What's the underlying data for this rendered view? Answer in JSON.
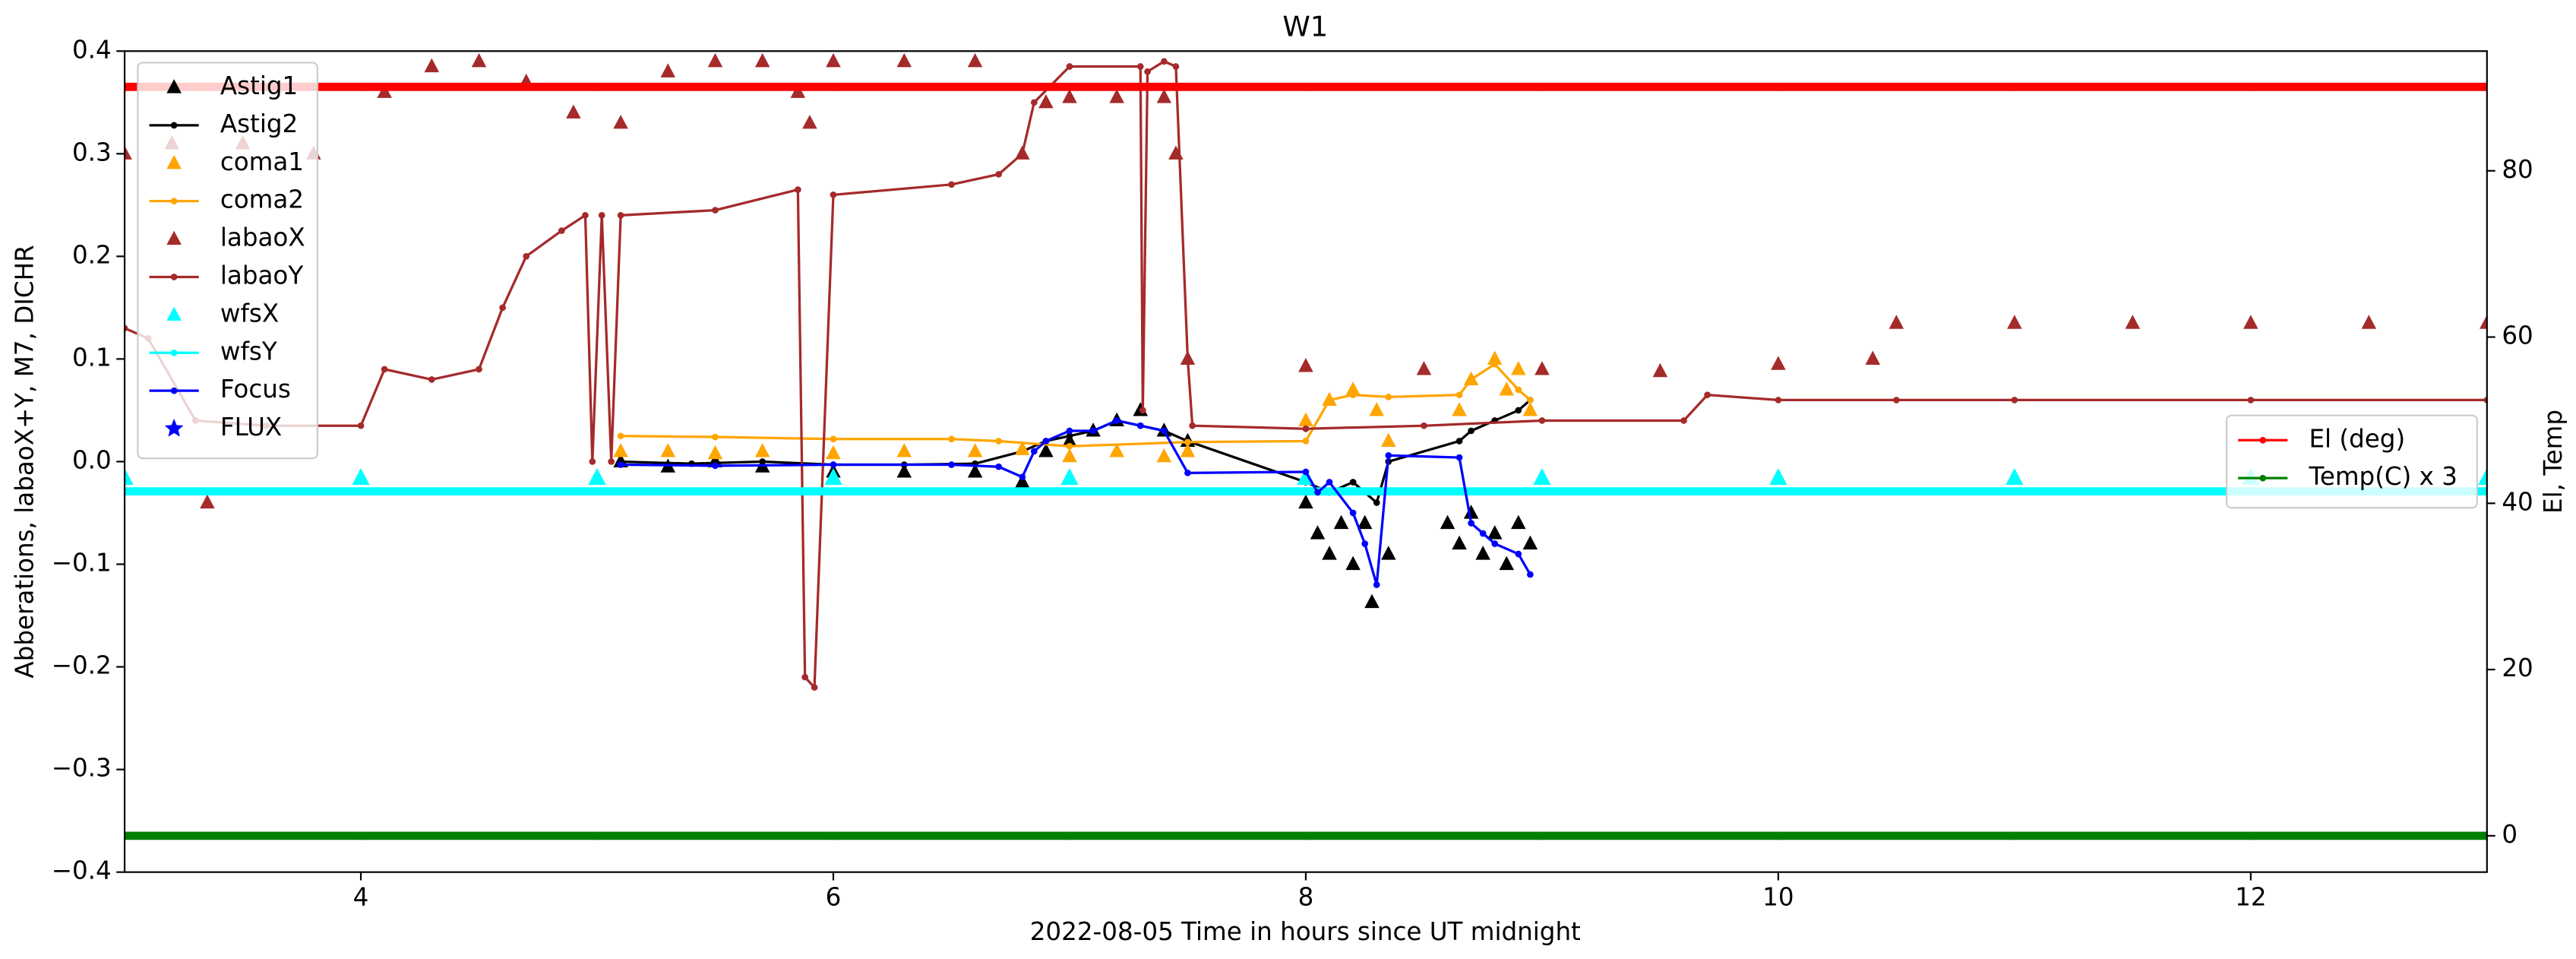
{
  "chart_data": {
    "type": "line",
    "title": "W1",
    "xlabel": "2022-08-05  Time in hours since UT midnight",
    "ylabel": "Abberations, labaoX+Y, M7, DICHR",
    "y2label": "El, Temp",
    "xlim": [
      3,
      13
    ],
    "xticks": [
      4,
      6,
      8,
      10,
      12
    ],
    "ylim": [
      -0.4,
      0.4
    ],
    "yticks": [
      {
        "value": -0.4,
        "label": "−0.4"
      },
      {
        "value": -0.3,
        "label": "−0.3"
      },
      {
        "value": -0.2,
        "label": "−0.2"
      },
      {
        "value": -0.1,
        "label": "−0.1"
      },
      {
        "value": 0,
        "label": "0.0"
      },
      0.1,
      0.2,
      0.3,
      0.4
    ],
    "y2lim": [
      -4.37,
      94.4
    ],
    "y2ticks": [
      0,
      20,
      40,
      60,
      80
    ],
    "legend": "upper left",
    "legend2": "center right",
    "series": [
      {
        "name": "Astig1",
        "color": "#000000",
        "marker": "^",
        "line": false,
        "x": [
          5.1,
          5.3,
          5.5,
          5.7,
          6.0,
          6.3,
          6.6,
          6.8,
          6.9,
          7.0,
          7.1,
          7.2,
          7.3,
          7.4,
          7.5,
          8.0,
          8.05,
          8.1,
          8.15,
          8.2,
          8.25,
          8.28,
          8.35,
          8.6,
          8.65,
          8.7,
          8.75,
          8.8,
          8.85,
          8.9,
          8.95
        ],
        "values": [
          0.0,
          -0.005,
          0.0,
          -0.005,
          -0.01,
          -0.01,
          -0.01,
          -0.02,
          0.01,
          0.02,
          0.03,
          0.04,
          0.05,
          0.03,
          0.02,
          -0.04,
          -0.07,
          -0.09,
          -0.06,
          -0.1,
          -0.06,
          -0.137,
          -0.09,
          -0.06,
          -0.08,
          -0.05,
          -0.09,
          -0.07,
          -0.1,
          -0.06,
          -0.08
        ]
      },
      {
        "name": "Astig2",
        "color": "#000000",
        "marker": "o",
        "line": true,
        "x": [
          5.1,
          5.4,
          5.7,
          6.0,
          6.3,
          6.6,
          6.8,
          6.9,
          7.0,
          7.1,
          7.2,
          7.3,
          7.4,
          7.5,
          8.0,
          8.1,
          8.2,
          8.3,
          8.35,
          8.65,
          8.7,
          8.8,
          8.9,
          8.95
        ],
        "values": [
          0.0,
          -0.002,
          0.0,
          -0.003,
          -0.003,
          -0.002,
          0.01,
          0.02,
          0.025,
          0.03,
          0.04,
          0.035,
          0.03,
          0.02,
          -0.02,
          -0.03,
          -0.02,
          -0.04,
          0.0,
          0.02,
          0.03,
          0.04,
          0.05,
          0.06
        ]
      },
      {
        "name": "coma1",
        "color": "#ffa500",
        "marker": "^",
        "line": false,
        "x": [
          5.1,
          5.3,
          5.5,
          5.7,
          6.0,
          6.3,
          6.6,
          6.8,
          7.0,
          7.2,
          7.4,
          7.5,
          8.0,
          8.1,
          8.2,
          8.3,
          8.35,
          8.65,
          8.7,
          8.8,
          8.85,
          8.9,
          8.95
        ],
        "values": [
          0.01,
          0.01,
          0.008,
          0.01,
          0.008,
          0.01,
          0.01,
          0.012,
          0.005,
          0.01,
          0.005,
          0.01,
          0.04,
          0.06,
          0.07,
          0.05,
          0.02,
          0.05,
          0.08,
          0.1,
          0.07,
          0.09,
          0.05
        ]
      },
      {
        "name": "coma2",
        "color": "#ffa500",
        "marker": "o",
        "line": true,
        "x": [
          5.1,
          5.5,
          6.0,
          6.5,
          6.7,
          7.0,
          7.5,
          8.0,
          8.1,
          8.2,
          8.35,
          8.65,
          8.7,
          8.8,
          8.9,
          8.95
        ],
        "values": [
          0.025,
          0.024,
          0.022,
          0.022,
          0.02,
          0.015,
          0.019,
          0.02,
          0.06,
          0.065,
          0.063,
          0.065,
          0.08,
          0.095,
          0.07,
          0.06
        ]
      },
      {
        "name": "labaoX",
        "color": "#a52a2a",
        "marker": "^",
        "line": false,
        "x": [
          3.0,
          3.2,
          3.35,
          3.5,
          3.8,
          4.1,
          4.3,
          4.5,
          4.7,
          4.9,
          5.1,
          5.3,
          5.5,
          5.7,
          5.85,
          5.9,
          6.0,
          6.3,
          6.6,
          6.8,
          6.9,
          7.0,
          7.2,
          7.4,
          7.45,
          7.5,
          8.0,
          8.5,
          9.0,
          9.5,
          10.0,
          10.4,
          10.5,
          11.0,
          11.5,
          12.0,
          12.5,
          13.0
        ],
        "values": [
          0.3,
          0.31,
          -0.04,
          0.31,
          0.3,
          0.36,
          0.385,
          0.39,
          0.37,
          0.34,
          0.33,
          0.38,
          0.39,
          0.39,
          0.36,
          0.33,
          0.39,
          0.39,
          0.39,
          0.3,
          0.35,
          0.355,
          0.355,
          0.355,
          0.3,
          0.1,
          0.093,
          0.09,
          0.09,
          0.088,
          0.095,
          0.1,
          0.135,
          0.135,
          0.135,
          0.135,
          0.135,
          0.135
        ]
      },
      {
        "name": "labaoY",
        "color": "#a52a2a",
        "marker": "o",
        "line": true,
        "x": [
          3.0,
          3.1,
          3.3,
          3.6,
          4.0,
          4.1,
          4.3,
          4.5,
          4.6,
          4.7,
          4.85,
          4.95,
          4.98,
          5.02,
          5.06,
          5.1,
          5.5,
          5.85,
          5.88,
          5.92,
          6.0,
          6.5,
          6.7,
          6.8,
          6.85,
          7.0,
          7.3,
          7.31,
          7.33,
          7.4,
          7.45,
          7.5,
          7.52,
          8.0,
          8.5,
          9.0,
          9.6,
          9.7,
          10.0,
          10.5,
          11.0,
          12.0,
          13.0
        ],
        "values": [
          0.13,
          0.12,
          0.04,
          0.035,
          0.035,
          0.09,
          0.08,
          0.09,
          0.15,
          0.2,
          0.225,
          0.24,
          0.0,
          0.24,
          0.0,
          0.24,
          0.245,
          0.265,
          -0.21,
          -0.22,
          0.26,
          0.27,
          0.28,
          0.3,
          0.35,
          0.385,
          0.385,
          0.05,
          0.38,
          0.39,
          0.385,
          0.1,
          0.035,
          0.032,
          0.035,
          0.04,
          0.04,
          0.065,
          0.06,
          0.06,
          0.06,
          0.06,
          0.06
        ]
      },
      {
        "name": "wfsX",
        "color": "#00ffff",
        "marker": "^",
        "line": false,
        "x": [
          3,
          4,
          5,
          6,
          7,
          8,
          9,
          10,
          11,
          12,
          13
        ],
        "values": [
          -0.016,
          -0.016,
          -0.016,
          -0.016,
          -0.016,
          -0.016,
          -0.016,
          -0.016,
          -0.016,
          -0.016,
          -0.016
        ]
      },
      {
        "name": "wfsY",
        "color": "#00ffff",
        "marker": "o",
        "line": true,
        "x": [
          3,
          4,
          5,
          6,
          7,
          8,
          9,
          10,
          11,
          12,
          13
        ],
        "values": [
          -0.029,
          -0.029,
          -0.029,
          -0.029,
          -0.029,
          -0.029,
          -0.029,
          -0.029,
          -0.029,
          -0.029,
          -0.029
        ]
      },
      {
        "name": "Focus",
        "color": "#0000ff",
        "marker": "o",
        "line": true,
        "x": [
          5.1,
          5.5,
          6.0,
          6.5,
          6.7,
          6.8,
          6.85,
          6.9,
          7.0,
          7.1,
          7.2,
          7.3,
          7.4,
          7.5,
          8.0,
          8.05,
          8.1,
          8.2,
          8.25,
          8.3,
          8.35,
          8.65,
          8.7,
          8.75,
          8.8,
          8.9,
          8.95
        ],
        "values": [
          -0.003,
          -0.004,
          -0.003,
          -0.003,
          -0.005,
          -0.015,
          0.01,
          0.02,
          0.03,
          0.03,
          0.04,
          0.035,
          0.03,
          -0.011,
          -0.01,
          -0.03,
          -0.02,
          -0.05,
          -0.08,
          -0.12,
          0.006,
          0.004,
          -0.06,
          -0.07,
          -0.08,
          -0.09,
          -0.11
        ]
      },
      {
        "name": "FLUX",
        "color": "#0000ff",
        "marker": "*",
        "line": false,
        "x": [],
        "values": []
      },
      {
        "name": "El (deg)",
        "color": "#ff0000",
        "marker": "o",
        "line": true,
        "axis": "y2",
        "x": [
          3,
          4,
          5,
          6,
          7,
          8,
          9,
          10,
          11,
          12,
          13
        ],
        "values": [
          90.1,
          90.1,
          90.1,
          90.1,
          90.1,
          90.1,
          90.1,
          90.1,
          90.1,
          90.1,
          90.1
        ]
      },
      {
        "name": "Temp(C) x 3",
        "color": "#008000",
        "marker": "o",
        "line": true,
        "axis": "y2",
        "x": [
          3,
          4,
          5,
          6,
          7,
          8,
          9,
          10,
          11,
          12,
          13
        ],
        "values": [
          0,
          0,
          0,
          0,
          0,
          0,
          0,
          0,
          0,
          0,
          0
        ]
      }
    ]
  }
}
